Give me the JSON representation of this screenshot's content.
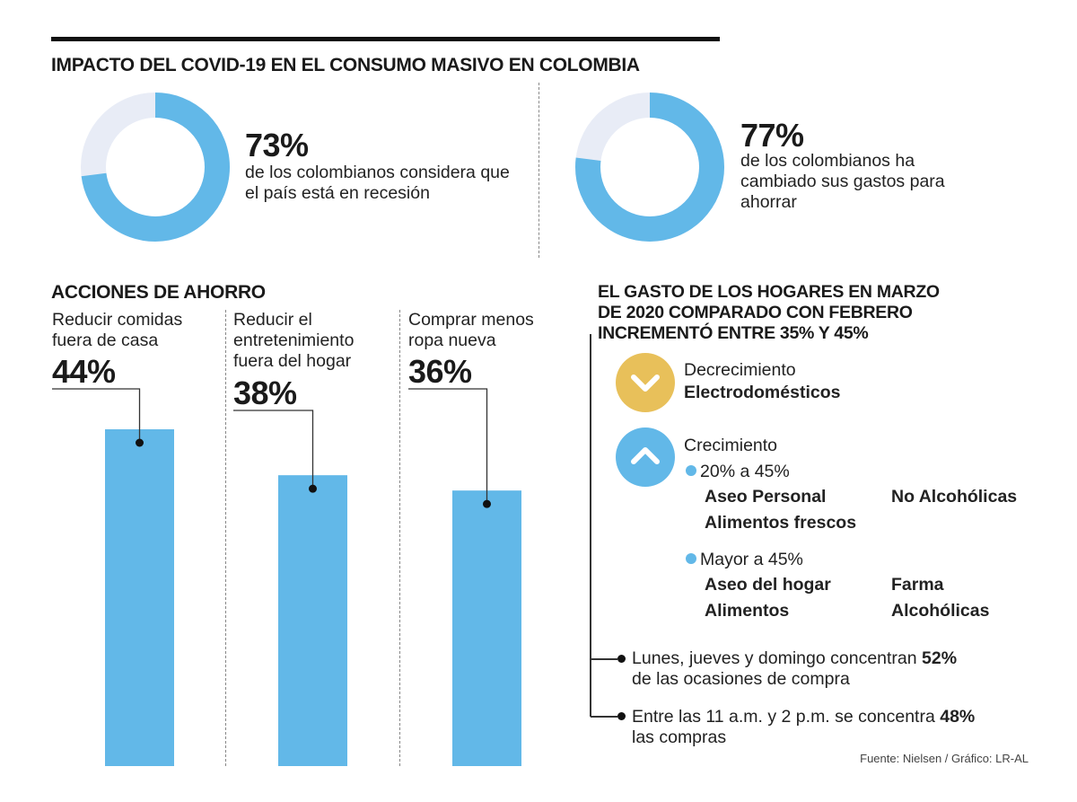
{
  "title": "IMPACTO DEL COVID-19 EN EL CONSUMO MASIVO EN COLOMBIA",
  "colors": {
    "blue": "#62b8e8",
    "remainder": "#e8ecf6",
    "gold": "#e8c05a"
  },
  "chart_data": [
    {
      "type": "pie",
      "variant": "donut",
      "values": [
        73,
        27
      ],
      "label": "73%",
      "text": "de los colombianos considera que el país está en recesión"
    },
    {
      "type": "pie",
      "variant": "donut",
      "values": [
        77,
        23
      ],
      "label": "77%",
      "text": "de los colombianos ha cambiado sus gastos para ahorrar"
    },
    {
      "type": "bar",
      "title": "ACCIONES DE AHORRO",
      "categories": [
        "Reducir comidas fuera de casa",
        "Reducir el entretenimiento fuera del hogar",
        "Comprar menos ropa nueva"
      ],
      "values": [
        44,
        38,
        36
      ],
      "labels": [
        "44%",
        "38%",
        "36%"
      ]
    }
  ],
  "right": {
    "heading": [
      "EL GASTO DE LOS HOGARES EN MARZO",
      "DE 2020 COMPARADO CON FEBRERO",
      "INCREMENTÓ ENTRE 35% Y 45%"
    ],
    "decrease": {
      "icon": "chevron-down-icon",
      "label": "Decrecimiento",
      "item": "Electrodomésticos"
    },
    "increase": {
      "icon": "chevron-up-icon",
      "label": "Crecimiento",
      "groups": [
        {
          "range": "20% a 45%",
          "items": [
            "Aseo Personal",
            "No Alcohólicas",
            "Alimentos frescos"
          ]
        },
        {
          "range": "Mayor a 45%",
          "items": [
            "Aseo del hogar",
            "Farma",
            "Alimentos",
            "Alcohólicas"
          ]
        }
      ]
    },
    "facts": [
      {
        "line1": "Lunes, jueves y domingo concentran ",
        "value": "52%",
        "line2": "de las ocasiones de compra"
      },
      {
        "line1": "Entre las 11 a.m. y 2 p.m. se concentra ",
        "value": "48%",
        "line2": "las compras"
      }
    ]
  },
  "source": "Fuente: Nielsen / Gráfico: LR-AL"
}
